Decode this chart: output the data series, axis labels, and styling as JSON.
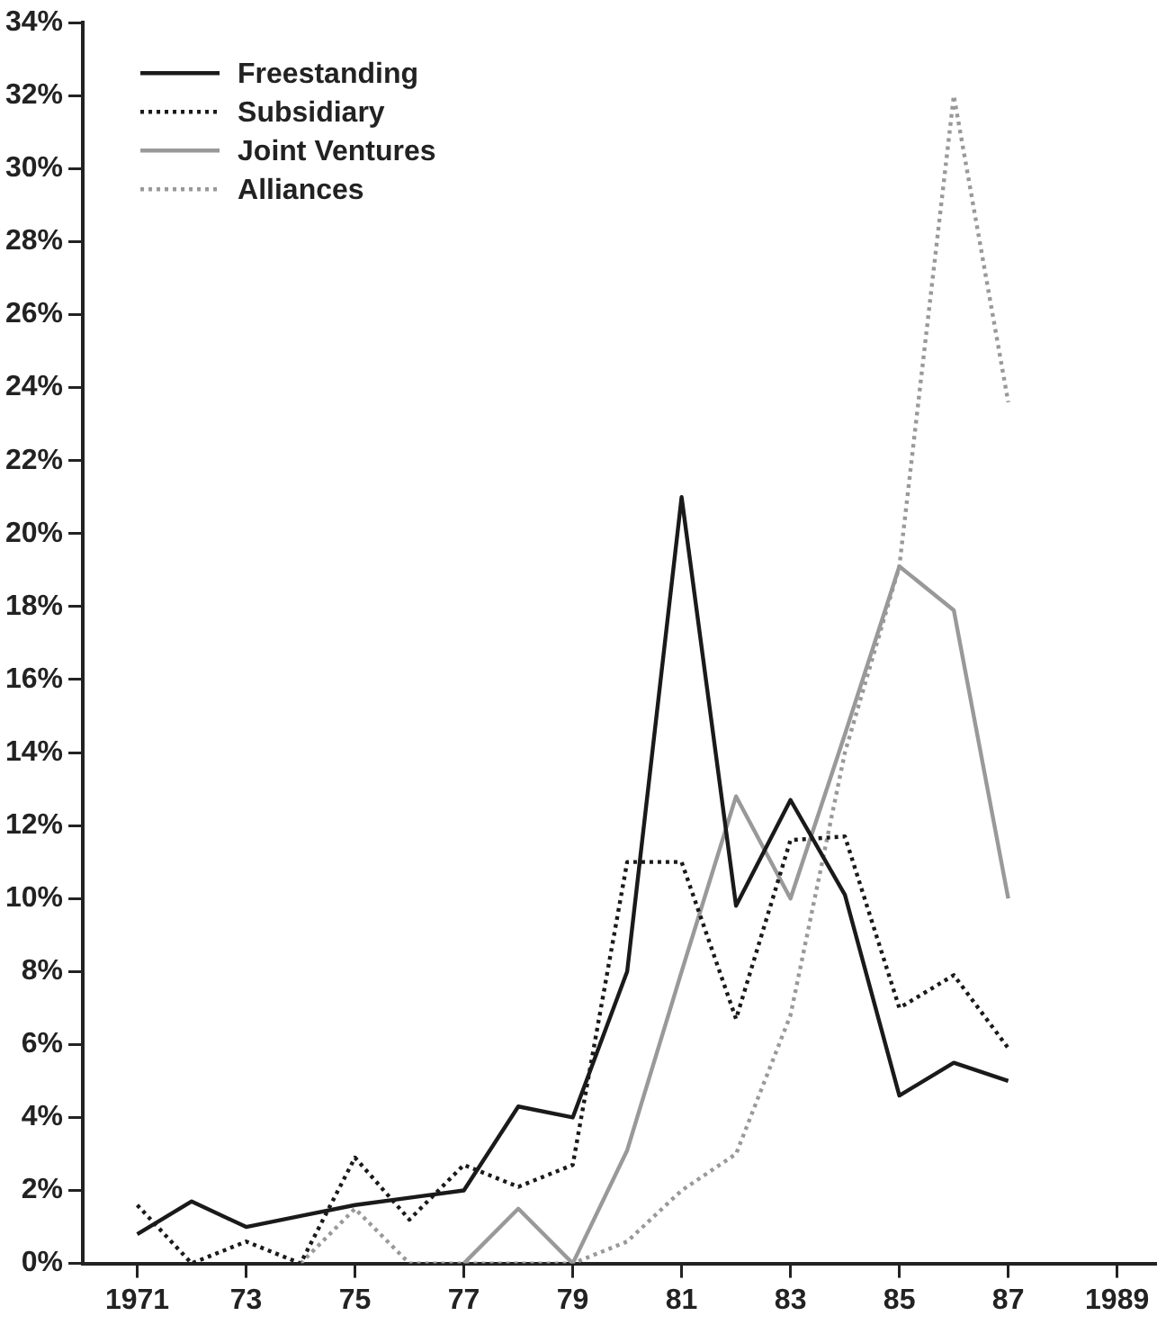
{
  "chart_data": {
    "type": "line",
    "x": [
      1971,
      1972,
      1973,
      1974,
      1975,
      1976,
      1977,
      1978,
      1979,
      1980,
      1981,
      1982,
      1983,
      1984,
      1985,
      1986,
      1987
    ],
    "series": [
      {
        "name": "Freestanding",
        "color": "#1a1a1a",
        "line_style": "solid",
        "values": [
          0.8,
          1.7,
          1.0,
          1.3,
          1.6,
          1.8,
          2.0,
          4.3,
          4.0,
          8.0,
          21.0,
          9.8,
          12.7,
          10.1,
          4.6,
          5.5,
          5.0
        ]
      },
      {
        "name": "Subsidiary",
        "color": "#1a1a1a",
        "line_style": "dotted",
        "values": [
          1.6,
          0,
          0.6,
          0,
          2.9,
          1.2,
          2.7,
          2.1,
          2.7,
          11.0,
          11.0,
          6.7,
          11.6,
          11.7,
          7.0,
          7.9,
          5.9
        ]
      },
      {
        "name": "Joint Ventures",
        "color": "#999999",
        "line_style": "solid",
        "values": [
          null,
          null,
          null,
          null,
          null,
          null,
          0,
          1.5,
          0,
          3.1,
          8.0,
          12.8,
          10.0,
          14.5,
          19.1,
          17.9,
          10.0
        ]
      },
      {
        "name": "Alliances",
        "color": "#999999",
        "line_style": "dotted",
        "values": [
          null,
          null,
          null,
          0,
          1.5,
          0,
          0,
          0,
          0,
          0.6,
          2.0,
          3.0,
          6.8,
          14.0,
          19.1,
          32.0,
          23.6
        ]
      }
    ],
    "xlim": [
      1970,
      1989.7
    ],
    "xticks": [
      1971,
      {
        "value": 1973,
        "label": "73"
      },
      {
        "value": 1975,
        "label": "75"
      },
      {
        "value": 1977,
        "label": "77"
      },
      {
        "value": 1979,
        "label": "79"
      },
      {
        "value": 1981,
        "label": "81"
      },
      {
        "value": 1983,
        "label": "83"
      },
      {
        "value": 1985,
        "label": "85"
      },
      {
        "value": 1987,
        "label": "87"
      },
      1989
    ],
    "ylim": [
      0,
      34
    ],
    "yticks": [
      {
        "value": 0,
        "label": "0%"
      },
      {
        "value": 2,
        "label": "2%"
      },
      {
        "value": 4,
        "label": "4%"
      },
      {
        "value": 6,
        "label": "6%"
      },
      {
        "value": 8,
        "label": "8%"
      },
      {
        "value": 10,
        "label": "10%"
      },
      {
        "value": 12,
        "label": "12%"
      },
      {
        "value": 14,
        "label": "14%"
      },
      {
        "value": 16,
        "label": "16%"
      },
      {
        "value": 18,
        "label": "18%"
      },
      {
        "value": 20,
        "label": "20%"
      },
      {
        "value": 22,
        "label": "22%"
      },
      {
        "value": 24,
        "label": "24%"
      },
      {
        "value": 26,
        "label": "26%"
      },
      {
        "value": 28,
        "label": "28%"
      },
      {
        "value": 30,
        "label": "30%"
      },
      {
        "value": 32,
        "label": "32%"
      },
      {
        "value": 34,
        "label": "34%"
      }
    ],
    "grid": false,
    "legend": "top left",
    "marker": "none"
  }
}
